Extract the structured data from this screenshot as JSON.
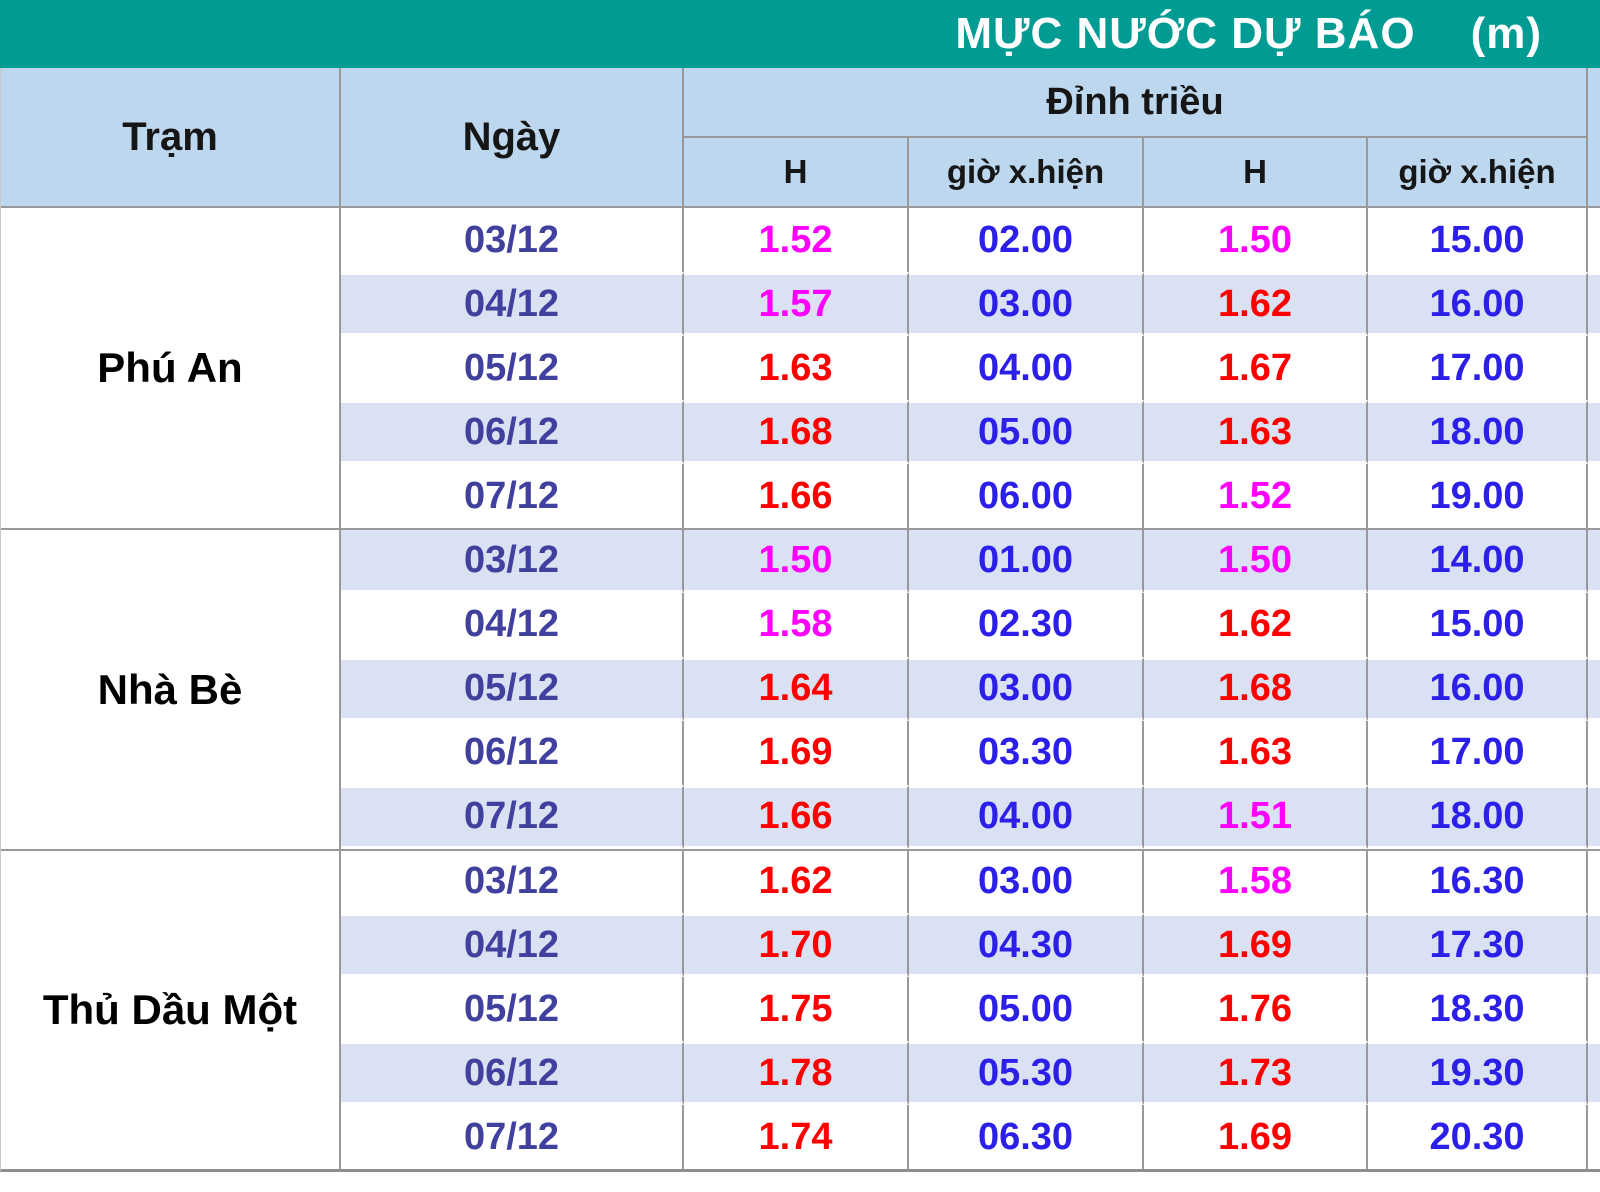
{
  "title": {
    "text": "MỰC NƯỚC DỰ BÁO",
    "unit": "(m)"
  },
  "colors": {
    "header_teal": "#009C94",
    "header_blue": "#BDD7EE",
    "row_alt": "#D9E1F2",
    "row_white": "#FFFFFF",
    "border_gray": "#999999",
    "title_text": "#FFFFFF",
    "header_text": "#161616",
    "station_text": "#000000",
    "date_text": "#40409E",
    "time_text": "#2B1FE8",
    "h_red": "#FF0000",
    "h_magenta": "#FF00FF"
  },
  "table": {
    "headers": {
      "station": "Trạm",
      "date": "Ngày",
      "peak_group": "Đỉnh triều",
      "h": "H",
      "time": "giờ x.hiện"
    },
    "stations": [
      {
        "name": "Phú An",
        "rows": [
          {
            "date": "03/12",
            "h1": "1.52",
            "h1_level": "magenta",
            "t1": "02.00",
            "h2": "1.50",
            "h2_level": "magenta",
            "t2": "15.00"
          },
          {
            "date": "04/12",
            "h1": "1.57",
            "h1_level": "magenta",
            "t1": "03.00",
            "h2": "1.62",
            "h2_level": "red",
            "t2": "16.00"
          },
          {
            "date": "05/12",
            "h1": "1.63",
            "h1_level": "red",
            "t1": "04.00",
            "h2": "1.67",
            "h2_level": "red",
            "t2": "17.00"
          },
          {
            "date": "06/12",
            "h1": "1.68",
            "h1_level": "red",
            "t1": "05.00",
            "h2": "1.63",
            "h2_level": "red",
            "t2": "18.00"
          },
          {
            "date": "07/12",
            "h1": "1.66",
            "h1_level": "red",
            "t1": "06.00",
            "h2": "1.52",
            "h2_level": "magenta",
            "t2": "19.00"
          }
        ]
      },
      {
        "name": "Nhà Bè",
        "rows": [
          {
            "date": "03/12",
            "h1": "1.50",
            "h1_level": "magenta",
            "t1": "01.00",
            "h2": "1.50",
            "h2_level": "magenta",
            "t2": "14.00"
          },
          {
            "date": "04/12",
            "h1": "1.58",
            "h1_level": "magenta",
            "t1": "02.30",
            "h2": "1.62",
            "h2_level": "red",
            "t2": "15.00"
          },
          {
            "date": "05/12",
            "h1": "1.64",
            "h1_level": "red",
            "t1": "03.00",
            "h2": "1.68",
            "h2_level": "red",
            "t2": "16.00"
          },
          {
            "date": "06/12",
            "h1": "1.69",
            "h1_level": "red",
            "t1": "03.30",
            "h2": "1.63",
            "h2_level": "red",
            "t2": "17.00"
          },
          {
            "date": "07/12",
            "h1": "1.66",
            "h1_level": "red",
            "t1": "04.00",
            "h2": "1.51",
            "h2_level": "magenta",
            "t2": "18.00"
          }
        ]
      },
      {
        "name": "Thủ Dầu Một",
        "rows": [
          {
            "date": "03/12",
            "h1": "1.62",
            "h1_level": "red",
            "t1": "03.00",
            "h2": "1.58",
            "h2_level": "magenta",
            "t2": "16.30"
          },
          {
            "date": "04/12",
            "h1": "1.70",
            "h1_level": "red",
            "t1": "04.30",
            "h2": "1.69",
            "h2_level": "red",
            "t2": "17.30"
          },
          {
            "date": "05/12",
            "h1": "1.75",
            "h1_level": "red",
            "t1": "05.00",
            "h2": "1.76",
            "h2_level": "red",
            "t2": "18.30"
          },
          {
            "date": "06/12",
            "h1": "1.78",
            "h1_level": "red",
            "t1": "05.30",
            "h2": "1.73",
            "h2_level": "red",
            "t2": "19.30"
          },
          {
            "date": "07/12",
            "h1": "1.74",
            "h1_level": "red",
            "t1": "06.30",
            "h2": "1.69",
            "h2_level": "red",
            "t2": "20.30"
          }
        ]
      }
    ]
  },
  "chart_data": {
    "type": "table",
    "title": "MỰC NƯỚC DỰ BÁO (m)",
    "columns": [
      "Trạm",
      "Ngày",
      "Đỉnh triều H",
      "Đỉnh triều giờ x.hiện",
      "Đỉnh triều H (2)",
      "Đỉnh triều giờ x.hiện (2)"
    ],
    "rows": [
      [
        "Phú An",
        "03/12",
        1.52,
        "02.00",
        1.5,
        "15.00"
      ],
      [
        "Phú An",
        "04/12",
        1.57,
        "03.00",
        1.62,
        "16.00"
      ],
      [
        "Phú An",
        "05/12",
        1.63,
        "04.00",
        1.67,
        "17.00"
      ],
      [
        "Phú An",
        "06/12",
        1.68,
        "05.00",
        1.63,
        "18.00"
      ],
      [
        "Phú An",
        "07/12",
        1.66,
        "06.00",
        1.52,
        "19.00"
      ],
      [
        "Nhà Bè",
        "03/12",
        1.5,
        "01.00",
        1.5,
        "14.00"
      ],
      [
        "Nhà Bè",
        "04/12",
        1.58,
        "02.30",
        1.62,
        "15.00"
      ],
      [
        "Nhà Bè",
        "05/12",
        1.64,
        "03.00",
        1.68,
        "16.00"
      ],
      [
        "Nhà Bè",
        "06/12",
        1.69,
        "03.30",
        1.63,
        "17.00"
      ],
      [
        "Nhà Bè",
        "07/12",
        1.66,
        "04.00",
        1.51,
        "18.00"
      ],
      [
        "Thủ Dầu Một",
        "03/12",
        1.62,
        "03.00",
        1.58,
        "16.30"
      ],
      [
        "Thủ Dầu Một",
        "04/12",
        1.7,
        "04.30",
        1.69,
        "17.30"
      ],
      [
        "Thủ Dầu Một",
        "05/12",
        1.75,
        "05.00",
        1.76,
        "18.30"
      ],
      [
        "Thủ Dầu Một",
        "06/12",
        1.78,
        "05.30",
        1.73,
        "19.30"
      ],
      [
        "Thủ Dầu Một",
        "07/12",
        1.74,
        "06.30",
        1.69,
        "20.30"
      ]
    ]
  }
}
